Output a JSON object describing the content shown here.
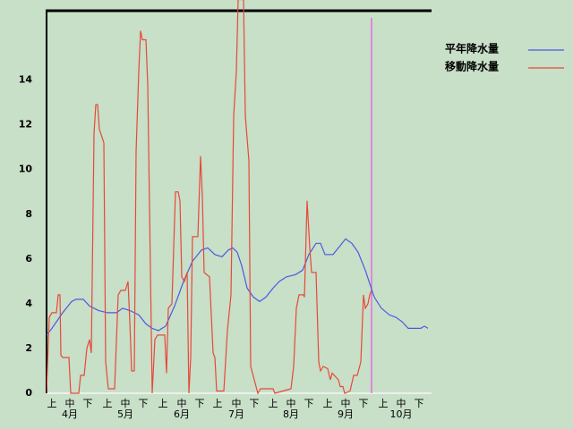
{
  "chart_data": {
    "type": "line",
    "xlim": [
      0,
      215
    ],
    "ylim": [
      0,
      17.1
    ],
    "yticks": [
      0,
      2,
      4,
      6,
      8,
      10,
      12,
      14
    ],
    "xticks": [
      {
        "value": 3,
        "label": "上"
      },
      {
        "value": 13,
        "label": "中"
      },
      {
        "value": 23,
        "label": "下"
      },
      {
        "value": 34,
        "label": "上"
      },
      {
        "value": 44,
        "label": "中"
      },
      {
        "value": 54,
        "label": "下"
      },
      {
        "value": 65,
        "label": "上"
      },
      {
        "value": 75.5,
        "label": "中"
      },
      {
        "value": 85.5,
        "label": "下"
      },
      {
        "value": 95.5,
        "label": "上"
      },
      {
        "value": 106,
        "label": "中"
      },
      {
        "value": 116,
        "label": "下"
      },
      {
        "value": 126.5,
        "label": "上"
      },
      {
        "value": 136.5,
        "label": "中"
      },
      {
        "value": 146.5,
        "label": "下"
      },
      {
        "value": 157,
        "label": "上"
      },
      {
        "value": 167,
        "label": "中"
      },
      {
        "value": 177,
        "label": "下"
      },
      {
        "value": 188,
        "label": "上"
      },
      {
        "value": 198,
        "label": "中"
      },
      {
        "value": 208,
        "label": "下"
      }
    ],
    "months": [
      "4月",
      "5月",
      "6月",
      "7月",
      "8月",
      "9月",
      "10月"
    ],
    "marker_x": 181.5,
    "marker_color": "#e070e0",
    "series": [
      {
        "name": "平年降水量",
        "color": "#4a5ae0",
        "x": [
          0,
          3,
          9,
          14,
          16.5,
          20.5,
          24,
          29,
          34,
          39,
          42.5,
          46.5,
          51.5,
          55.5,
          59,
          62.5,
          66.5,
          71.5,
          76.5,
          81.5,
          86.5,
          90,
          94,
          98,
          101.5,
          104,
          106.5,
          109,
          112,
          115.5,
          119,
          122.5,
          126.5,
          130,
          134,
          139,
          143,
          146.5,
          150.5,
          153,
          155.5,
          160,
          163,
          167,
          170.5,
          174,
          178,
          183,
          187,
          191.5,
          195,
          198.5,
          202,
          206.5,
          209,
          211,
          213
        ],
        "values": [
          2.6,
          2.9,
          3.6,
          4.1,
          4.2,
          4.2,
          3.9,
          3.7,
          3.6,
          3.6,
          3.8,
          3.7,
          3.5,
          3.1,
          2.9,
          2.8,
          3,
          3.9,
          5,
          5.9,
          6.4,
          6.5,
          6.2,
          6.1,
          6.4,
          6.5,
          6.3,
          5.7,
          4.7,
          4.3,
          4.1,
          4.3,
          4.7,
          5,
          5.2,
          5.3,
          5.5,
          6.2,
          6.7,
          6.7,
          6.2,
          6.2,
          6.5,
          6.9,
          6.7,
          6.3,
          5.5,
          4.3,
          3.8,
          3.5,
          3.4,
          3.2,
          2.9,
          2.9,
          2.9,
          3,
          2.9
        ]
      },
      {
        "name": "移動降水量",
        "color": "#e8483a",
        "x": [
          0,
          1.5,
          3,
          5.5,
          6.5,
          7.5,
          8,
          9,
          12.5,
          13.5,
          18,
          19,
          21,
          22.5,
          24,
          25,
          26.5,
          27.5,
          28.5,
          29.5,
          32,
          33,
          34.5,
          38,
          40,
          41.5,
          44,
          45.5,
          46.5,
          47.5,
          49,
          50,
          51.5,
          52.5,
          53.5,
          55.5,
          56.5,
          59,
          60.5,
          62,
          66,
          67,
          68,
          70,
          72,
          73.5,
          74.5,
          75.5,
          77,
          78.5,
          79.5,
          80.5,
          81.5,
          84.5,
          86,
          87,
          88,
          91,
          93,
          94,
          95,
          99,
          101,
          103,
          104.5,
          106,
          107,
          110,
          111,
          113,
          114,
          116,
          118,
          119.5,
          126.5,
          127.5,
          132,
          136.5,
          138,
          139.5,
          141,
          143.5,
          144,
          145.5,
          147,
          148,
          150.5,
          152,
          153,
          154.5,
          157,
          158.5,
          159.5,
          163,
          164,
          165.5,
          166.5,
          169.5,
          171.5,
          173.5,
          175.5,
          177,
          178,
          179.5,
          180.5,
          181.5
        ],
        "values": [
          0,
          3.4,
          3.6,
          3.6,
          4.4,
          4.4,
          1.7,
          1.6,
          1.6,
          0,
          0,
          0.8,
          0.8,
          2,
          2.4,
          1.8,
          11.6,
          12.9,
          12.9,
          11.8,
          11.2,
          1.4,
          0.2,
          0.2,
          4.4,
          4.6,
          4.6,
          5,
          3.2,
          1,
          1,
          10.8,
          14.4,
          16.2,
          15.8,
          15.8,
          13.8,
          0,
          2.4,
          2.6,
          2.6,
          0.9,
          3.8,
          4,
          9,
          9,
          8.6,
          5.2,
          5,
          5.4,
          0,
          1.6,
          7,
          7,
          10.6,
          8.8,
          5.4,
          5.2,
          1.8,
          1.6,
          0.1,
          0.1,
          2.8,
          4.4,
          12.4,
          14.4,
          17.6,
          17.6,
          12.4,
          10.4,
          1.2,
          0.6,
          0,
          0.2,
          0.2,
          0,
          0.1,
          0.2,
          1.2,
          3.8,
          4.4,
          4.4,
          4.3,
          8.6,
          6.5,
          5.4,
          5.4,
          1.4,
          1,
          1.2,
          1.1,
          0.6,
          0.9,
          0.6,
          0.3,
          0.3,
          0,
          0.1,
          0.8,
          0.8,
          1.4,
          4.4,
          3.8,
          4,
          4.4,
          4.6
        ]
      }
    ]
  }
}
